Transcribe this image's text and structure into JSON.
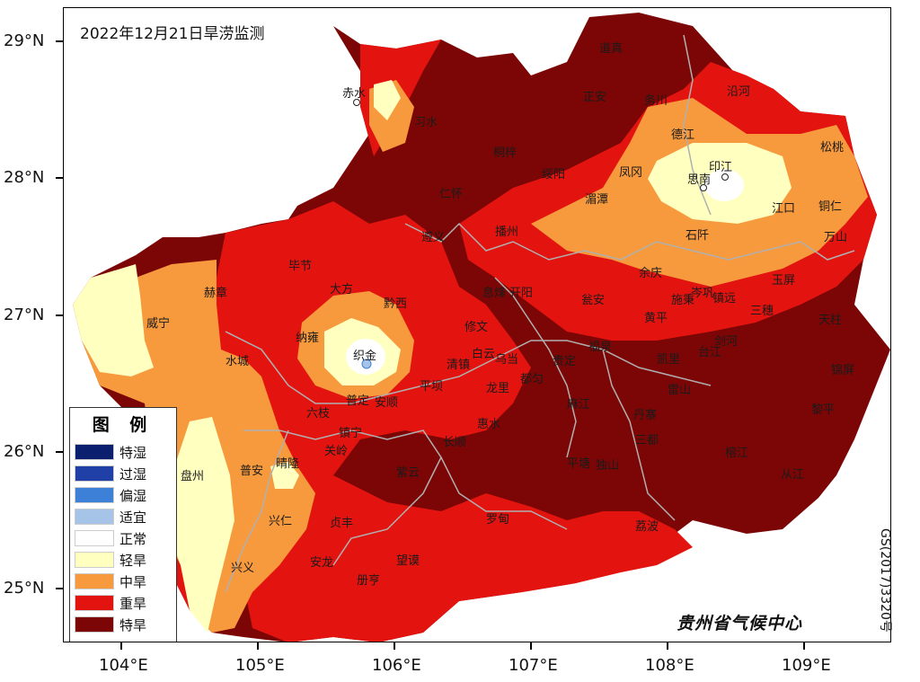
{
  "title": "2022年12月21日旱涝监测",
  "agency": "贵州省气候中心",
  "approval_number": "GS(2017)3320号",
  "latitude_labels": [
    "29°N",
    "28°N",
    "27°N",
    "26°N",
    "25°N"
  ],
  "longitude_labels": [
    "104°E",
    "105°E",
    "106°E",
    "107°E",
    "108°E",
    "109°E"
  ],
  "legend": {
    "title": "图 例",
    "items": [
      {
        "label": "特湿",
        "color": "#0a1f6e"
      },
      {
        "label": "过湿",
        "color": "#2040a8"
      },
      {
        "label": "偏湿",
        "color": "#3d80d8"
      },
      {
        "label": "适宜",
        "color": "#a6c4e8"
      },
      {
        "label": "正常",
        "color": "#ffffff"
      },
      {
        "label": "轻旱",
        "color": "#ffffc0"
      },
      {
        "label": "中旱",
        "color": "#f79a3e"
      },
      {
        "label": "重旱",
        "color": "#e3140f"
      },
      {
        "label": "特旱",
        "color": "#7c0606"
      }
    ]
  },
  "cities": [
    "赤水",
    "习水",
    "道真",
    "正安",
    "务川",
    "沿河",
    "桐梓",
    "绥阳",
    "德江",
    "凤冈",
    "思南",
    "印江",
    "松桃",
    "仁怀",
    "湄潭",
    "江口",
    "铜仁",
    "遵义",
    "播州",
    "石阡",
    "万山",
    "毕节",
    "大方",
    "余庆",
    "赫章",
    "黔西",
    "息烽",
    "开阳",
    "瓮安",
    "黄平",
    "施秉",
    "镇远",
    "岑巩",
    "三穗",
    "玉屏",
    "威宁",
    "织金",
    "修文",
    "天柱",
    "水城",
    "纳雍",
    "清镇",
    "白云",
    "乌当",
    "贵定",
    "福泉",
    "凯里",
    "剑河",
    "台江",
    "锦屏",
    "普定",
    "安顺",
    "平坝",
    "龙里",
    "都匀",
    "丹寨",
    "雷山",
    "黎平",
    "六枝",
    "镇宁",
    "长顺",
    "惠水",
    "麻江",
    "榕江",
    "盘州",
    "普安",
    "晴隆",
    "关岭",
    "紫云",
    "平塘",
    "独山",
    "三都",
    "从江",
    "兴仁",
    "贞丰",
    "罗甸",
    "荔波",
    "安龙",
    "望谟",
    "册亨",
    "兴义"
  ]
}
